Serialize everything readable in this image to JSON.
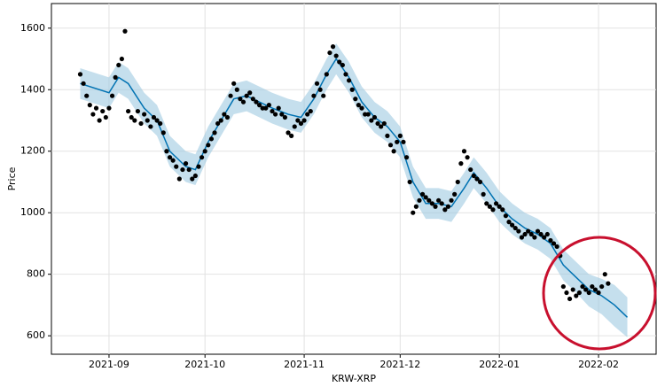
{
  "chart_data": {
    "type": "forecast",
    "xlabel": "KRW-XRP",
    "ylabel": "Price",
    "xlim": [
      "2021-08-14",
      "2022-02-19"
    ],
    "ylim": [
      540,
      1680
    ],
    "yticks": [
      600,
      800,
      1000,
      1200,
      1400,
      1600
    ],
    "xticks": [
      {
        "value": "2021-09-01",
        "label": "2021-09"
      },
      {
        "value": "2021-10-01",
        "label": "2021-10"
      },
      {
        "value": "2021-11-01",
        "label": "2021-11"
      },
      {
        "value": "2021-12-01",
        "label": "2021-12"
      },
      {
        "value": "2022-01-01",
        "label": "2022-01"
      },
      {
        "value": "2022-02-01",
        "label": "2022-02"
      }
    ],
    "grid": true,
    "observed": {
      "color": "#000000",
      "x": [
        "2021-08-23",
        "2021-08-24",
        "2021-08-25",
        "2021-08-26",
        "2021-08-27",
        "2021-08-28",
        "2021-08-29",
        "2021-08-30",
        "2021-08-31",
        "2021-09-01",
        "2021-09-02",
        "2021-09-03",
        "2021-09-04",
        "2021-09-05",
        "2021-09-06",
        "2021-09-07",
        "2021-09-08",
        "2021-09-09",
        "2021-09-10",
        "2021-09-11",
        "2021-09-12",
        "2021-09-13",
        "2021-09-14",
        "2021-09-15",
        "2021-09-16",
        "2021-09-17",
        "2021-09-18",
        "2021-09-19",
        "2021-09-20",
        "2021-09-21",
        "2021-09-22",
        "2021-09-23",
        "2021-09-24",
        "2021-09-25",
        "2021-09-26",
        "2021-09-27",
        "2021-09-28",
        "2021-09-29",
        "2021-09-30",
        "2021-10-01",
        "2021-10-02",
        "2021-10-03",
        "2021-10-04",
        "2021-10-05",
        "2021-10-06",
        "2021-10-07",
        "2021-10-08",
        "2021-10-09",
        "2021-10-10",
        "2021-10-11",
        "2021-10-12",
        "2021-10-13",
        "2021-10-14",
        "2021-10-15",
        "2021-10-16",
        "2021-10-17",
        "2021-10-18",
        "2021-10-19",
        "2021-10-20",
        "2021-10-21",
        "2021-10-22",
        "2021-10-23",
        "2021-10-24",
        "2021-10-25",
        "2021-10-26",
        "2021-10-27",
        "2021-10-28",
        "2021-10-29",
        "2021-10-30",
        "2021-10-31",
        "2021-11-01",
        "2021-11-02",
        "2021-11-03",
        "2021-11-04",
        "2021-11-05",
        "2021-11-06",
        "2021-11-07",
        "2021-11-08",
        "2021-11-09",
        "2021-11-10",
        "2021-11-11",
        "2021-11-12",
        "2021-11-13",
        "2021-11-14",
        "2021-11-15",
        "2021-11-16",
        "2021-11-17",
        "2021-11-18",
        "2021-11-19",
        "2021-11-20",
        "2021-11-21",
        "2021-11-22",
        "2021-11-23",
        "2021-11-24",
        "2021-11-25",
        "2021-11-26",
        "2021-11-27",
        "2021-11-28",
        "2021-11-29",
        "2021-11-30",
        "2021-12-01",
        "2021-12-02",
        "2021-12-03",
        "2021-12-04",
        "2021-12-05",
        "2021-12-06",
        "2021-12-07",
        "2021-12-08",
        "2021-12-09",
        "2021-12-10",
        "2021-12-11",
        "2021-12-12",
        "2021-12-13",
        "2021-12-14",
        "2021-12-15",
        "2021-12-16",
        "2021-12-17",
        "2021-12-18",
        "2021-12-19",
        "2021-12-20",
        "2021-12-21",
        "2021-12-22",
        "2021-12-23",
        "2021-12-24",
        "2021-12-25",
        "2021-12-26",
        "2021-12-27",
        "2021-12-28",
        "2021-12-29",
        "2021-12-30",
        "2021-12-31",
        "2022-01-01",
        "2022-01-02",
        "2022-01-03",
        "2022-01-04",
        "2022-01-05",
        "2022-01-06",
        "2022-01-07",
        "2022-01-08",
        "2022-01-09",
        "2022-01-10",
        "2022-01-11",
        "2022-01-12",
        "2022-01-13",
        "2022-01-14",
        "2022-01-15",
        "2022-01-16",
        "2022-01-17",
        "2022-01-18",
        "2022-01-19",
        "2022-01-20",
        "2022-01-21",
        "2022-01-22",
        "2022-01-23",
        "2022-01-24",
        "2022-01-25",
        "2022-01-26",
        "2022-01-27",
        "2022-01-28",
        "2022-01-29",
        "2022-01-30",
        "2022-01-31",
        "2022-02-01",
        "2022-02-02",
        "2022-02-03",
        "2022-02-04"
      ],
      "values": [
        1450,
        1420,
        1380,
        1350,
        1320,
        1340,
        1300,
        1330,
        1310,
        1340,
        1380,
        1440,
        1480,
        1500,
        1590,
        1330,
        1310,
        1300,
        1330,
        1290,
        1320,
        1300,
        1280,
        1310,
        1300,
        1290,
        1260,
        1200,
        1180,
        1170,
        1150,
        1110,
        1140,
        1160,
        1140,
        1110,
        1120,
        1150,
        1180,
        1200,
        1220,
        1240,
        1260,
        1290,
        1300,
        1320,
        1310,
        1380,
        1420,
        1400,
        1370,
        1360,
        1380,
        1390,
        1370,
        1360,
        1350,
        1340,
        1340,
        1350,
        1330,
        1320,
        1340,
        1320,
        1310,
        1260,
        1250,
        1280,
        1300,
        1290,
        1300,
        1320,
        1330,
        1380,
        1420,
        1400,
        1380,
        1450,
        1520,
        1540,
        1510,
        1490,
        1480,
        1450,
        1430,
        1400,
        1370,
        1350,
        1340,
        1320,
        1320,
        1300,
        1310,
        1290,
        1280,
        1290,
        1250,
        1220,
        1200,
        1230,
        1250,
        1230,
        1180,
        1100,
        1000,
        1020,
        1040,
        1060,
        1050,
        1040,
        1030,
        1020,
        1040,
        1030,
        1010,
        1020,
        1040,
        1060,
        1100,
        1160,
        1200,
        1180,
        1140,
        1120,
        1110,
        1100,
        1060,
        1030,
        1020,
        1010,
        1030,
        1020,
        1010,
        990,
        970,
        960,
        950,
        940,
        920,
        930,
        940,
        930,
        920,
        940,
        930,
        920,
        930,
        910,
        900,
        890,
        860,
        760,
        740,
        720,
        750,
        730,
        740,
        760,
        750,
        740,
        760,
        750,
        740,
        760,
        800,
        770
      ]
    },
    "forecast": {
      "color": "#0072b2",
      "band_color": "#9ecae1",
      "x": [
        "2021-08-23",
        "2021-09-01",
        "2021-09-04",
        "2021-09-07",
        "2021-09-12",
        "2021-09-16",
        "2021-09-20",
        "2021-09-25",
        "2021-09-28",
        "2021-10-02",
        "2021-10-06",
        "2021-10-10",
        "2021-10-14",
        "2021-10-18",
        "2021-10-22",
        "2021-10-27",
        "2021-10-31",
        "2021-11-04",
        "2021-11-08",
        "2021-11-11",
        "2021-11-15",
        "2021-11-19",
        "2021-11-23",
        "2021-11-27",
        "2021-12-01",
        "2021-12-05",
        "2021-12-09",
        "2021-12-13",
        "2021-12-17",
        "2021-12-21",
        "2021-12-24",
        "2021-12-28",
        "2022-01-01",
        "2022-01-05",
        "2022-01-09",
        "2022-01-13",
        "2022-01-17",
        "2022-01-21",
        "2022-01-25",
        "2022-01-29",
        "2022-02-02",
        "2022-02-06",
        "2022-02-10"
      ],
      "values": [
        1420,
        1390,
        1440,
        1420,
        1340,
        1300,
        1200,
        1150,
        1140,
        1230,
        1300,
        1370,
        1380,
        1360,
        1340,
        1320,
        1310,
        1370,
        1450,
        1500,
        1440,
        1360,
        1310,
        1280,
        1230,
        1100,
        1030,
        1030,
        1020,
        1080,
        1130,
        1080,
        1020,
        980,
        950,
        930,
        900,
        830,
        790,
        750,
        730,
        700,
        660
      ],
      "lower": [
        1370,
        1340,
        1390,
        1370,
        1290,
        1250,
        1150,
        1100,
        1090,
        1180,
        1250,
        1320,
        1330,
        1310,
        1290,
        1270,
        1260,
        1320,
        1400,
        1450,
        1390,
        1310,
        1260,
        1230,
        1180,
        1050,
        980,
        980,
        970,
        1030,
        1080,
        1030,
        970,
        930,
        900,
        880,
        850,
        780,
        740,
        695,
        670,
        630,
        595
      ],
      "upper": [
        1470,
        1440,
        1490,
        1470,
        1390,
        1350,
        1250,
        1200,
        1190,
        1280,
        1350,
        1420,
        1430,
        1410,
        1390,
        1370,
        1360,
        1420,
        1500,
        1550,
        1490,
        1410,
        1360,
        1330,
        1280,
        1150,
        1080,
        1080,
        1070,
        1130,
        1180,
        1130,
        1070,
        1030,
        1000,
        980,
        950,
        880,
        840,
        800,
        785,
        765,
        725
      ]
    }
  }
}
